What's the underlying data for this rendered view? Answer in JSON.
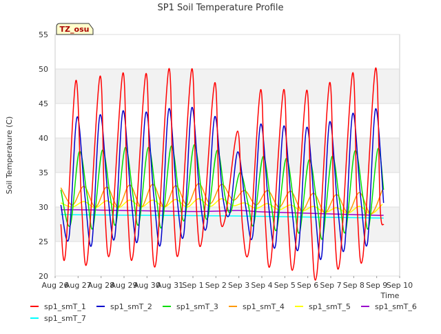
{
  "chart_data": {
    "type": "line",
    "title": "SP1 Soil Temperature Profile",
    "xlabel": "Time",
    "ylabel": "Soil Temperature (C)",
    "annotation": "TZ_osu",
    "ylim": [
      20,
      55
    ],
    "yticks": [
      20,
      25,
      30,
      35,
      40,
      45,
      50,
      55
    ],
    "xlim": [
      0,
      15
    ],
    "xticks": [
      {
        "v": 0,
        "label": "Aug 26"
      },
      {
        "v": 1,
        "label": "Aug 27"
      },
      {
        "v": 2,
        "label": "Aug 28"
      },
      {
        "v": 3,
        "label": "Aug 29"
      },
      {
        "v": 4,
        "label": "Aug 30"
      },
      {
        "v": 5,
        "label": "Aug 31"
      },
      {
        "v": 6,
        "label": "Sep 1"
      },
      {
        "v": 7,
        "label": "Sep 2"
      },
      {
        "v": 8,
        "label": "Sep 3"
      },
      {
        "v": 9,
        "label": "Sep 4"
      },
      {
        "v": 10,
        "label": "Sep 5"
      },
      {
        "v": 11,
        "label": "Sep 6"
      },
      {
        "v": 12,
        "label": "Sep 7"
      },
      {
        "v": 13,
        "label": "Sep 8"
      },
      {
        "v": 14,
        "label": "Sep 9"
      },
      {
        "v": 15,
        "label": "Sep 10"
      }
    ],
    "series": [
      {
        "name": "sp1_smT_1",
        "color": "#ff0000",
        "x": [
          0.25,
          0.45,
          0.9,
          1.15,
          1.4,
          1.95,
          2.15,
          2.4,
          2.95,
          3.15,
          3.4,
          3.95,
          4.15,
          4.4,
          4.95,
          5.15,
          5.4,
          5.95,
          6.15,
          6.4,
          6.95,
          7.15,
          7.4,
          7.95,
          8.15,
          8.45,
          8.95,
          9.15,
          9.4,
          9.95,
          10.15,
          10.4,
          10.95,
          11.15,
          11.4,
          11.95,
          12.15,
          12.4,
          12.95,
          13.15,
          13.4,
          13.95,
          14.15,
          14.3
        ],
        "values": [
          27.5,
          23.2,
          48.3,
          30.5,
          22.3,
          48.9,
          30.5,
          23.7,
          49.4,
          30.0,
          23.2,
          49.3,
          30.0,
          22.2,
          50.0,
          30.0,
          23.9,
          50.0,
          30.0,
          25.4,
          48.0,
          30.0,
          28.3,
          41.0,
          27.5,
          24.0,
          47.0,
          28.0,
          22.3,
          47.0,
          28.0,
          21.8,
          46.9,
          27.5,
          20.4,
          48.0,
          28.0,
          22.2,
          49.4,
          30.0,
          22.8,
          50.1,
          30.0,
          27.4
        ]
      },
      {
        "name": "sp1_smT_2",
        "color": "#0000cc",
        "x": [
          0.25,
          0.6,
          0.95,
          1.3,
          1.6,
          1.95,
          2.3,
          2.6,
          2.95,
          3.3,
          3.6,
          3.95,
          4.3,
          4.6,
          4.95,
          5.3,
          5.6,
          5.95,
          6.3,
          6.6,
          6.95,
          7.3,
          7.6,
          7.95,
          8.3,
          8.6,
          8.95,
          9.3,
          9.6,
          9.95,
          10.3,
          10.6,
          10.95,
          11.3,
          11.6,
          11.95,
          12.3,
          12.6,
          12.95,
          13.3,
          13.6,
          13.95,
          14.3
        ],
        "values": [
          30.3,
          25.5,
          43.0,
          31.5,
          24.7,
          43.3,
          31.5,
          25.7,
          43.9,
          31.5,
          25.3,
          43.7,
          31.5,
          24.8,
          44.2,
          31.5,
          26.0,
          44.4,
          31.5,
          27.2,
          43.1,
          31.5,
          29.0,
          38.0,
          30.0,
          25.8,
          42.0,
          30.0,
          24.5,
          41.7,
          30.0,
          24.1,
          41.5,
          30.0,
          22.8,
          42.3,
          30.0,
          24.1,
          43.5,
          31.5,
          24.8,
          44.2,
          30.6
        ]
      },
      {
        "name": "sp1_smT_3",
        "color": "#00dd00",
        "x": [
          0.25,
          0.65,
          1.05,
          1.4,
          1.65,
          2.05,
          2.4,
          2.65,
          3.05,
          3.4,
          3.65,
          4.05,
          4.4,
          4.65,
          5.05,
          5.4,
          5.65,
          6.05,
          6.4,
          6.65,
          7.05,
          7.4,
          7.65,
          8.05,
          8.4,
          8.65,
          9.05,
          9.4,
          9.65,
          10.05,
          10.4,
          10.65,
          11.05,
          11.4,
          11.65,
          12.05,
          12.4,
          12.65,
          13.05,
          13.4,
          13.65,
          14.05,
          14.3
        ],
        "values": [
          32.5,
          27.3,
          38.0,
          31.5,
          27.0,
          38.2,
          31.5,
          27.6,
          38.6,
          31.5,
          27.6,
          38.6,
          31.5,
          27.2,
          38.8,
          31.5,
          28.3,
          39.0,
          31.5,
          28.5,
          38.2,
          31.5,
          29.3,
          35.0,
          30.5,
          27.5,
          37.3,
          30.5,
          26.8,
          37.0,
          30.5,
          26.4,
          36.8,
          30.5,
          25.5,
          37.3,
          30.5,
          26.5,
          38.1,
          31.5,
          27.0,
          38.4,
          32.5
        ]
      },
      {
        "name": "sp1_smT_4",
        "color": "#ff9900",
        "x": [
          0.25,
          0.75,
          1.25,
          1.75,
          2.25,
          2.75,
          3.25,
          3.75,
          4.25,
          4.75,
          5.25,
          5.75,
          6.25,
          6.75,
          7.25,
          7.75,
          8.25,
          8.75,
          9.25,
          9.75,
          10.25,
          10.75,
          11.25,
          11.75,
          12.25,
          12.75,
          13.25,
          13.75,
          14.25
        ],
        "values": [
          32.8,
          30.3,
          33.0,
          30.0,
          32.9,
          30.0,
          33.2,
          30.0,
          33.3,
          30.0,
          33.1,
          30.3,
          33.4,
          30.5,
          33.3,
          31.0,
          32.4,
          30.3,
          32.4,
          30.0,
          32.3,
          29.5,
          32.0,
          29.2,
          31.8,
          29.2,
          32.1,
          29.0,
          32.5
        ]
      },
      {
        "name": "sp1_smT_5",
        "color": "#ffff00",
        "x": [
          0.25,
          0.75,
          1.25,
          1.75,
          2.25,
          2.75,
          3.25,
          3.75,
          4.25,
          4.75,
          5.25,
          5.75,
          6.25,
          6.75,
          7.25,
          7.75,
          8.25,
          8.75,
          9.25,
          9.75,
          10.25,
          10.75,
          11.25,
          11.75,
          12.25,
          12.75,
          13.25,
          13.75,
          14.25
        ],
        "values": [
          30.6,
          30.0,
          30.8,
          29.9,
          30.9,
          29.9,
          31.0,
          30.0,
          31.0,
          30.0,
          31.1,
          30.0,
          31.2,
          30.1,
          31.2,
          30.2,
          30.6,
          29.8,
          30.5,
          29.6,
          30.3,
          29.4,
          30.1,
          29.2,
          29.9,
          29.1,
          30.1,
          29.0,
          30.4
        ]
      },
      {
        "name": "sp1_smT_6",
        "color": "#9900cc",
        "x": [
          0.25,
          1,
          2,
          3,
          4,
          5,
          6,
          7,
          8,
          9,
          10,
          11,
          12,
          13,
          14,
          14.3
        ],
        "values": [
          29.6,
          29.6,
          29.55,
          29.5,
          29.45,
          29.4,
          29.35,
          29.4,
          29.5,
          29.3,
          29.2,
          29.1,
          29.0,
          28.9,
          28.8,
          28.8
        ]
      },
      {
        "name": "sp1_smT_7",
        "color": "#00ffff",
        "x": [
          0.25,
          2,
          4,
          6,
          8,
          10,
          12,
          14.3
        ],
        "values": [
          28.9,
          28.85,
          28.8,
          28.75,
          28.7,
          28.6,
          28.5,
          28.4
        ]
      }
    ]
  }
}
